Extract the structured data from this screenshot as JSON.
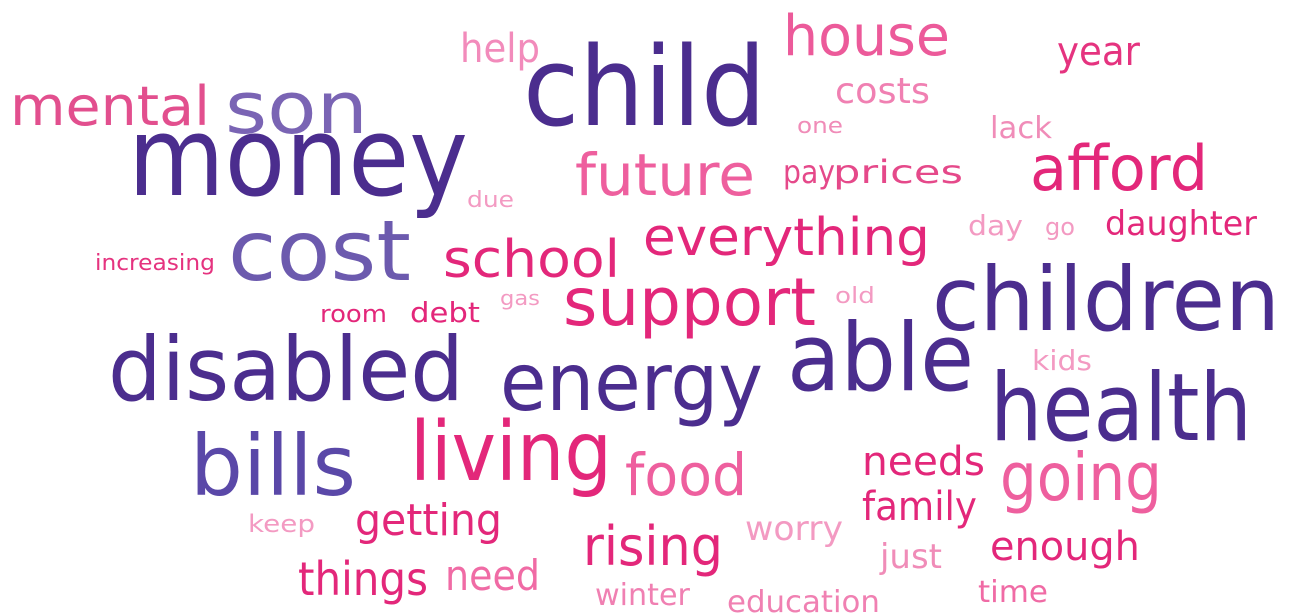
{
  "words": [
    {
      "text": "help",
      "color": "#f28bbb"
    },
    {
      "text": "house",
      "color": "#ec5a9a"
    },
    {
      "text": "year",
      "color": "#e5337f"
    },
    {
      "text": "mental",
      "color": "#e24f8e"
    },
    {
      "text": "son",
      "color": "#7a64b4"
    },
    {
      "text": "child",
      "color": "#4b2d8e"
    },
    {
      "text": "costs",
      "color": "#f080b2"
    },
    {
      "text": "one",
      "color": "#f08cb8"
    },
    {
      "text": "lack",
      "color": "#f08cb8"
    },
    {
      "text": "money",
      "color": "#4b2d8e"
    },
    {
      "text": "future",
      "color": "#ee5f9e"
    },
    {
      "text": "pay",
      "color": "#e5498a"
    },
    {
      "text": "prices",
      "color": "#e5498a"
    },
    {
      "text": "afford",
      "color": "#e3277a"
    },
    {
      "text": "due",
      "color": "#f39ac2"
    },
    {
      "text": "increasing",
      "color": "#e5337f"
    },
    {
      "text": "cost",
      "color": "#6c5aae"
    },
    {
      "text": "school",
      "color": "#e3277a"
    },
    {
      "text": "everything",
      "color": "#e3277a"
    },
    {
      "text": "day",
      "color": "#f39ac2"
    },
    {
      "text": "go",
      "color": "#f39ac2"
    },
    {
      "text": "daughter",
      "color": "#e3277a"
    },
    {
      "text": "room",
      "color": "#e3277a"
    },
    {
      "text": "debt",
      "color": "#e3277a"
    },
    {
      "text": "gas",
      "color": "#f39ac2"
    },
    {
      "text": "support",
      "color": "#e3277a"
    },
    {
      "text": "old",
      "color": "#f39ac2"
    },
    {
      "text": "children",
      "color": "#4b2d8e"
    },
    {
      "text": "disabled",
      "color": "#4b2d8e"
    },
    {
      "text": "energy",
      "color": "#4b2d8e"
    },
    {
      "text": "able",
      "color": "#4b2d8e"
    },
    {
      "text": "kids",
      "color": "#f39ac2"
    },
    {
      "text": "health",
      "color": "#4b2d8e"
    },
    {
      "text": "bills",
      "color": "#5a48a8"
    },
    {
      "text": "living",
      "color": "#e3277a"
    },
    {
      "text": "food",
      "color": "#ee5f9e"
    },
    {
      "text": "needs",
      "color": "#e3277a"
    },
    {
      "text": "going",
      "color": "#ee5f9e"
    },
    {
      "text": "keep",
      "color": "#f39ac2"
    },
    {
      "text": "getting",
      "color": "#e3277a"
    },
    {
      "text": "worry",
      "color": "#f39ac2"
    },
    {
      "text": "family",
      "color": "#e3277a"
    },
    {
      "text": "rising",
      "color": "#e3277a"
    },
    {
      "text": "just",
      "color": "#f08cb8"
    },
    {
      "text": "enough",
      "color": "#e3277a"
    },
    {
      "text": "things",
      "color": "#e3277a"
    },
    {
      "text": "need",
      "color": "#f06ba5"
    },
    {
      "text": "winter",
      "color": "#f080b2"
    },
    {
      "text": "education",
      "color": "#f080b2"
    },
    {
      "text": "time",
      "color": "#f06ba5"
    }
  ]
}
